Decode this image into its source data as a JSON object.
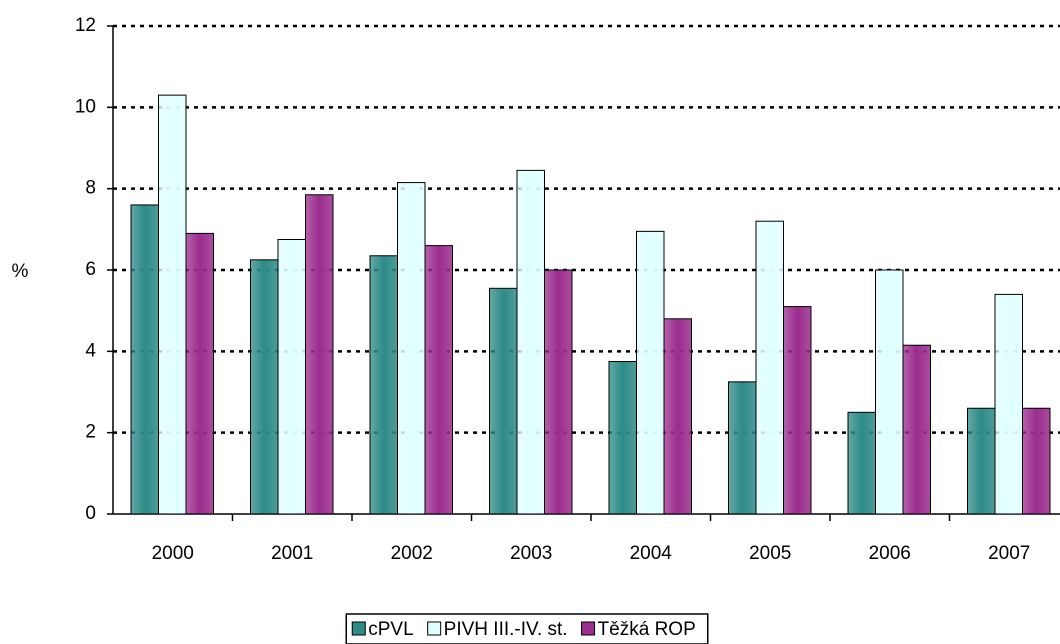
{
  "chart_data": {
    "type": "bar",
    "y_label": "%",
    "categories": [
      "2000",
      "2001",
      "2002",
      "2003",
      "2004",
      "2005",
      "2006",
      "2007"
    ],
    "series": [
      {
        "name": "cPVL",
        "color": "#2e8b87",
        "values": [
          7.6,
          6.25,
          6.35,
          5.55,
          3.75,
          3.25,
          2.5,
          2.6
        ]
      },
      {
        "name": "PIVH III.-IV. st.",
        "color": "#e0ffff",
        "values": [
          10.3,
          6.75,
          8.15,
          8.45,
          6.95,
          7.2,
          6.0,
          5.4
        ]
      },
      {
        "name": "Těžká ROP",
        "color": "#9b2d8e",
        "values": [
          6.9,
          7.85,
          6.6,
          6.0,
          4.8,
          5.1,
          4.15,
          2.6
        ]
      }
    ],
    "ylim": [
      0,
      12
    ],
    "yticks": [
      0,
      2,
      4,
      6,
      8,
      10,
      12
    ],
    "grid": true,
    "legend": "bottom"
  }
}
